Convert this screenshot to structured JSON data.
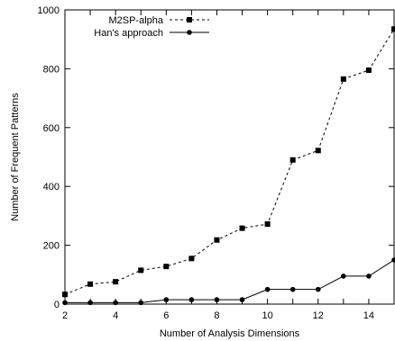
{
  "chart_data": {
    "type": "line",
    "xlabel": "Number of Analysis Dimensions",
    "ylabel": "Number of Frequent Patterns",
    "xlim": [
      2,
      15
    ],
    "ylim": [
      0,
      1000
    ],
    "x_ticks": [
      2,
      4,
      6,
      8,
      10,
      12,
      14
    ],
    "y_ticks": [
      0,
      200,
      400,
      600,
      800,
      1000
    ],
    "grid": false,
    "legend_position": "top-left",
    "series": [
      {
        "name": "M2SP-alpha",
        "line_style": "dashed",
        "marker": "square",
        "color": "#000000",
        "x": [
          2,
          3,
          4,
          5,
          6,
          7,
          8,
          9,
          10,
          11,
          12,
          13,
          14,
          15
        ],
        "y": [
          33,
          68,
          76,
          115,
          128,
          155,
          218,
          258,
          272,
          490,
          522,
          765,
          795,
          935
        ]
      },
      {
        "name": "Han's approach",
        "line_style": "solid",
        "marker": "circle",
        "color": "#000000",
        "x": [
          2,
          3,
          4,
          5,
          6,
          7,
          8,
          9,
          10,
          11,
          12,
          13,
          14,
          15
        ],
        "y": [
          5,
          5,
          5,
          5,
          15,
          15,
          15,
          15,
          50,
          50,
          50,
          95,
          95,
          150
        ]
      }
    ]
  }
}
